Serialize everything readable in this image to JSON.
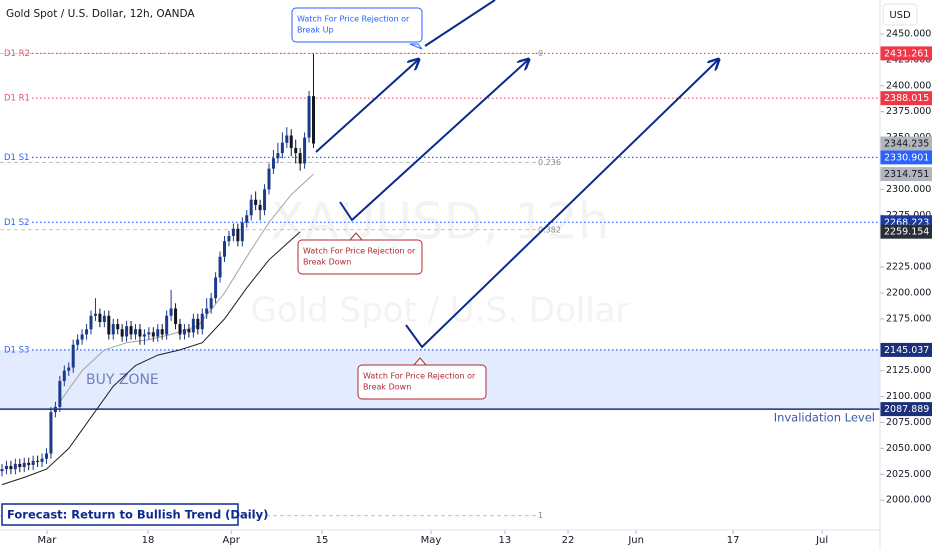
{
  "chart_data": {
    "type": "candlestick",
    "title": "Gold Spot / U.S. Dollar, 12h, OANDA",
    "currency": "USD",
    "watermark": {
      "symbol": "XAUUSD, 12h",
      "name": "Gold Spot / U.S. Dollar"
    },
    "xlim": [
      -0.45,
      197.3
    ],
    "ylim": [
      1971.2,
      2482.8
    ],
    "xticks": [
      {
        "value": 10.1,
        "label": "Mar"
      },
      {
        "value": 32.8,
        "label": "18"
      },
      {
        "value": 51.5,
        "label": "Apr"
      },
      {
        "value": 71.9,
        "label": "15"
      },
      {
        "value": 96.4,
        "label": "May"
      },
      {
        "value": 113.0,
        "label": "13"
      },
      {
        "value": 127.2,
        "label": "22"
      },
      {
        "value": 142.5,
        "label": "Jun"
      },
      {
        "value": 164.3,
        "label": "17"
      },
      {
        "value": 184.3,
        "label": "Jul"
      }
    ],
    "yticks": [
      {
        "value": 2450,
        "label": "2450.000"
      },
      {
        "value": 2425,
        "label": "2425.000"
      },
      {
        "value": 2400,
        "label": "2400.000"
      },
      {
        "value": 2375,
        "label": "2375.000"
      },
      {
        "value": 2350,
        "label": "2350.000"
      },
      {
        "value": 2300,
        "label": "2300.000"
      },
      {
        "value": 2275,
        "label": "2275.000"
      },
      {
        "value": 2225,
        "label": "2225.000"
      },
      {
        "value": 2200,
        "label": "2200.000"
      },
      {
        "value": 2175,
        "label": "2175.000"
      },
      {
        "value": 2125,
        "label": "2125.000"
      },
      {
        "value": 2100,
        "label": "2100.000"
      },
      {
        "value": 2075,
        "label": "2075.000"
      },
      {
        "value": 2050,
        "label": "2050.000"
      },
      {
        "value": 2025,
        "label": "2025.000"
      },
      {
        "value": 2000,
        "label": "2000.000"
      }
    ],
    "candles": {
      "up_color": "#1b3a8c",
      "down_color": "#131722",
      "open": [
        2028,
        2030,
        2033,
        2030,
        2035,
        2032,
        2036,
        2034,
        2038,
        2037,
        2040,
        2045,
        2085,
        2090,
        2115,
        2125,
        2128,
        2150,
        2155,
        2160,
        2165,
        2178,
        2180,
        2172,
        2178,
        2160,
        2170,
        2165,
        2158,
        2168,
        2160,
        2165,
        2158,
        2160,
        2162,
        2158,
        2165,
        2160,
        2178,
        2185,
        2170,
        2160,
        2165,
        2162,
        2175,
        2165,
        2180,
        2185,
        2195,
        2215,
        2235,
        2250,
        2255,
        2262,
        2250,
        2268,
        2275,
        2290,
        2285,
        2280,
        2300,
        2320,
        2330,
        2335,
        2345,
        2352,
        2340,
        2335,
        2325,
        2350,
        2390
      ],
      "high": [
        2035,
        2038,
        2038,
        2040,
        2040,
        2041,
        2041,
        2043,
        2043,
        2045,
        2050,
        2090,
        2095,
        2120,
        2130,
        2133,
        2155,
        2160,
        2165,
        2170,
        2183,
        2195,
        2185,
        2183,
        2183,
        2175,
        2175,
        2170,
        2173,
        2173,
        2170,
        2170,
        2165,
        2167,
        2167,
        2170,
        2170,
        2183,
        2203,
        2190,
        2175,
        2170,
        2170,
        2180,
        2180,
        2185,
        2195,
        2200,
        2220,
        2240,
        2255,
        2260,
        2267,
        2267,
        2273,
        2280,
        2295,
        2298,
        2290,
        2305,
        2325,
        2338,
        2345,
        2355,
        2360,
        2358,
        2348,
        2340,
        2355,
        2395,
        2431
      ],
      "low": [
        2023,
        2025,
        2025,
        2025,
        2027,
        2027,
        2029,
        2029,
        2032,
        2032,
        2035,
        2040,
        2080,
        2085,
        2110,
        2120,
        2123,
        2145,
        2150,
        2155,
        2160,
        2173,
        2167,
        2167,
        2155,
        2155,
        2160,
        2153,
        2153,
        2155,
        2155,
        2150,
        2150,
        2155,
        2153,
        2153,
        2155,
        2155,
        2173,
        2165,
        2155,
        2155,
        2157,
        2157,
        2160,
        2160,
        2175,
        2180,
        2190,
        2210,
        2230,
        2245,
        2250,
        2245,
        2245,
        2263,
        2270,
        2280,
        2270,
        2275,
        2295,
        2315,
        2325,
        2330,
        2340,
        2332,
        2325,
        2318,
        2320,
        2345,
        2340
      ],
      "close": [
        2030,
        2033,
        2030,
        2035,
        2032,
        2036,
        2034,
        2038,
        2037,
        2040,
        2045,
        2085,
        2090,
        2115,
        2125,
        2128,
        2150,
        2155,
        2160,
        2165,
        2178,
        2180,
        2172,
        2178,
        2160,
        2170,
        2165,
        2158,
        2168,
        2160,
        2165,
        2158,
        2160,
        2162,
        2158,
        2165,
        2160,
        2178,
        2185,
        2170,
        2160,
        2165,
        2162,
        2175,
        2165,
        2180,
        2185,
        2195,
        2215,
        2235,
        2250,
        2255,
        2262,
        2250,
        2268,
        2275,
        2290,
        2285,
        2280,
        2300,
        2320,
        2330,
        2335,
        2345,
        2352,
        2340,
        2335,
        2325,
        2350,
        2390,
        2344.235
      ],
      "last_color": "#b2b5be"
    },
    "moving_averages": [
      {
        "color": "#a3a3a3",
        "x": [
          13,
          18,
          23,
          28,
          33,
          38,
          44,
          50,
          55,
          60,
          65,
          70
        ],
        "values": [
          2095,
          2125,
          2145,
          2152,
          2155,
          2160,
          2168,
          2200,
          2235,
          2268,
          2295,
          2314.751
        ]
      },
      {
        "color": "#1f1f1f",
        "x": [
          0,
          5,
          10,
          15,
          20,
          25,
          30,
          35,
          40,
          45,
          50,
          55,
          60,
          67
        ],
        "values": [
          2015,
          2022,
          2030,
          2050,
          2080,
          2110,
          2130,
          2140,
          2145,
          2152,
          2175,
          2205,
          2232,
          2259.154
        ]
      }
    ],
    "levels": [
      {
        "name": "D1 R2",
        "value": 2431.261,
        "color": "#e0566a",
        "badge_color": "#f23645"
      },
      {
        "name": "D1 R1",
        "value": 2388.015,
        "color": "#e0566a",
        "badge_color": "#f23645"
      },
      {
        "name": "D1 S1",
        "value": 2330.901,
        "color": "#2962ff",
        "badge_color": "#2962ff"
      },
      {
        "name": "D1 S2",
        "value": 2268.223,
        "color": "#2962ff",
        "badge_color": "#1e3a9f"
      },
      {
        "name": "D1 S3",
        "value": 2145.037,
        "color": "#2962ff",
        "badge_color": "#1c2f7a"
      }
    ],
    "fib_levels": [
      {
        "ratio": 0,
        "price": 2431.261
      },
      {
        "ratio": 0.236,
        "price": 2326
      },
      {
        "ratio": 0.382,
        "price": 2261
      },
      {
        "ratio": 1,
        "price": 1985
      }
    ],
    "buy_zone": {
      "label": "BUY ZONE",
      "top": 2145.037,
      "bottom": 2087.889
    },
    "invalidation": {
      "label": "Invalidation Level",
      "value": 2087.889,
      "color": "#1c2f7a"
    },
    "annotations": [
      {
        "lines": [
          "Watch For Price Rejection or",
          "Break Up"
        ],
        "color": "#2962ff"
      },
      {
        "lines": [
          "Watch For Price Rejection or",
          "Break Down"
        ],
        "color": "#b22833"
      },
      {
        "lines": [
          "Watch For Price Rejection or",
          "Break Down"
        ],
        "color": "#b22833"
      }
    ],
    "forecast": "Forecast: Return to Bullish Trend (Daily)"
  }
}
